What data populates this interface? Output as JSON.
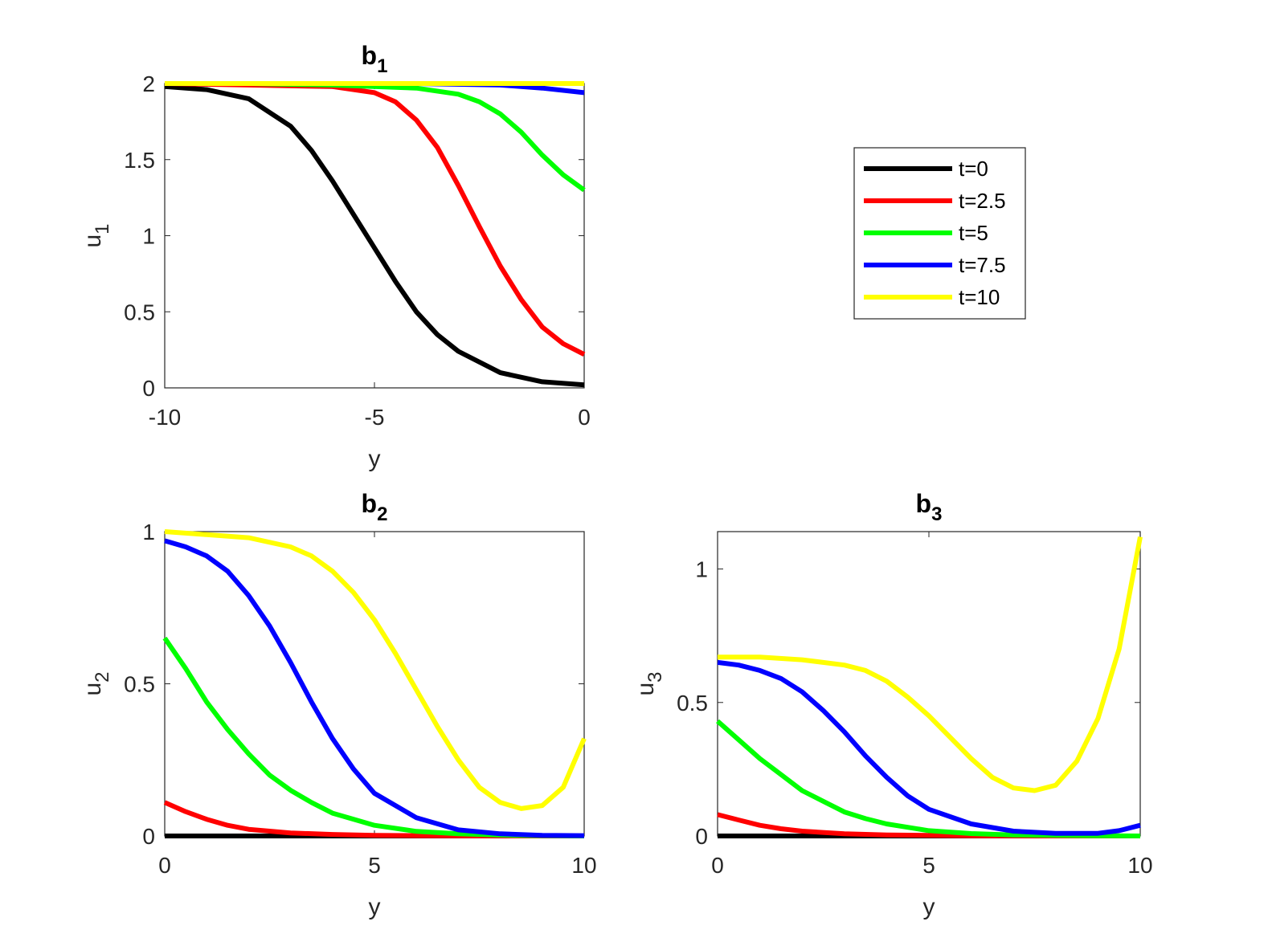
{
  "colors": {
    "t0": "#000000",
    "t2_5": "#ff0000",
    "t5": "#00ff00",
    "t7_5": "#0000ff",
    "t10": "#ffff00"
  },
  "legend": {
    "placement": "right of top-left panel",
    "entries": [
      "t=0",
      "t=2.5",
      "t=5",
      "t=7.5",
      "t=10"
    ]
  },
  "chart_data": [
    {
      "type": "line",
      "title": "b",
      "title_sub": "1",
      "xlabel": "y",
      "ylabel": "u",
      "ylabel_sub": "1",
      "xlim": [
        -10,
        0
      ],
      "ylim": [
        0,
        2
      ],
      "xticks": [
        -10,
        -5,
        0
      ],
      "xtick_labels": [
        "-10",
        "-5",
        "0"
      ],
      "yticks": [
        0,
        0.5,
        1,
        1.5,
        2
      ],
      "ytick_labels": [
        "0",
        "0.5",
        "1",
        "1.5",
        "2"
      ],
      "grid": false,
      "series": [
        {
          "name": "t=0",
          "color": "#000000",
          "x": [
            -10,
            -9,
            -8,
            -7,
            -6.5,
            -6,
            -5.5,
            -5,
            -4.5,
            -4,
            -3.5,
            -3,
            -2,
            -1,
            0
          ],
          "y": [
            1.98,
            1.96,
            1.9,
            1.72,
            1.56,
            1.36,
            1.14,
            0.92,
            0.7,
            0.5,
            0.35,
            0.24,
            0.1,
            0.04,
            0.02
          ]
        },
        {
          "name": "t=2.5",
          "color": "#ff0000",
          "x": [
            -10,
            -8,
            -6,
            -5,
            -4.5,
            -4,
            -3.5,
            -3,
            -2.5,
            -2,
            -1.5,
            -1,
            -0.5,
            0
          ],
          "y": [
            2.0,
            1.99,
            1.98,
            1.94,
            1.88,
            1.76,
            1.58,
            1.33,
            1.06,
            0.8,
            0.58,
            0.4,
            0.29,
            0.22
          ]
        },
        {
          "name": "t=5",
          "color": "#00ff00",
          "x": [
            -10,
            -8,
            -6,
            -4,
            -3,
            -2.5,
            -2,
            -1.5,
            -1,
            -0.5,
            0
          ],
          "y": [
            2.0,
            2.0,
            1.99,
            1.97,
            1.93,
            1.88,
            1.8,
            1.68,
            1.53,
            1.4,
            1.3
          ]
        },
        {
          "name": "t=7.5",
          "color": "#0000ff",
          "x": [
            -10,
            -6,
            -4,
            -2,
            -1,
            0
          ],
          "y": [
            2.0,
            2.0,
            2.0,
            1.99,
            1.97,
            1.94
          ]
        },
        {
          "name": "t=10",
          "color": "#ffff00",
          "x": [
            -10,
            -5,
            0
          ],
          "y": [
            2.0,
            2.0,
            2.0
          ]
        }
      ]
    },
    {
      "type": "line",
      "title": "b",
      "title_sub": "2",
      "xlabel": "y",
      "ylabel": "u",
      "ylabel_sub": "2",
      "xlim": [
        0,
        10
      ],
      "ylim": [
        0,
        1
      ],
      "xticks": [
        0,
        5,
        10
      ],
      "xtick_labels": [
        "0",
        "5",
        "10"
      ],
      "yticks": [
        0,
        0.5,
        1
      ],
      "ytick_labels": [
        "0",
        "0.5",
        "1"
      ],
      "grid": false,
      "series": [
        {
          "name": "t=0",
          "color": "#000000",
          "x": [
            0,
            2,
            4,
            6,
            8,
            10
          ],
          "y": [
            0.0,
            0.0,
            0.0,
            0.0,
            0.0,
            0.0
          ]
        },
        {
          "name": "t=2.5",
          "color": "#ff0000",
          "x": [
            0,
            0.5,
            1,
            1.5,
            2,
            3,
            4,
            5,
            6,
            8,
            10
          ],
          "y": [
            0.11,
            0.08,
            0.055,
            0.035,
            0.022,
            0.01,
            0.005,
            0.002,
            0.001,
            0.0,
            0.0
          ]
        },
        {
          "name": "t=5",
          "color": "#00ff00",
          "x": [
            0,
            0.5,
            1,
            1.5,
            2,
            2.5,
            3,
            3.5,
            4,
            5,
            6,
            7,
            8,
            9,
            10
          ],
          "y": [
            0.65,
            0.55,
            0.44,
            0.35,
            0.27,
            0.2,
            0.15,
            0.11,
            0.075,
            0.035,
            0.015,
            0.007,
            0.003,
            0.001,
            0.0
          ]
        },
        {
          "name": "t=7.5",
          "color": "#0000ff",
          "x": [
            0,
            0.5,
            1,
            1.5,
            2,
            2.5,
            3,
            3.5,
            4,
            4.5,
            5,
            6,
            7,
            8,
            9,
            10
          ],
          "y": [
            0.97,
            0.95,
            0.92,
            0.87,
            0.79,
            0.69,
            0.57,
            0.44,
            0.32,
            0.22,
            0.14,
            0.06,
            0.02,
            0.007,
            0.002,
            0.001
          ]
        },
        {
          "name": "t=10",
          "color": "#ffff00",
          "x": [
            0,
            1,
            2,
            3,
            3.5,
            4,
            4.5,
            5,
            5.5,
            6,
            6.5,
            7,
            7.5,
            8,
            8.5,
            9,
            9.5,
            10
          ],
          "y": [
            1.0,
            0.99,
            0.98,
            0.95,
            0.92,
            0.87,
            0.8,
            0.71,
            0.6,
            0.48,
            0.36,
            0.25,
            0.16,
            0.11,
            0.09,
            0.1,
            0.16,
            0.32
          ]
        }
      ]
    },
    {
      "type": "line",
      "title": "b",
      "title_sub": "3",
      "xlabel": "y",
      "ylabel": "u",
      "ylabel_sub": "3",
      "xlim": [
        0,
        10
      ],
      "ylim": [
        0,
        1.14
      ],
      "xticks": [
        0,
        5,
        10
      ],
      "xtick_labels": [
        "0",
        "5",
        "10"
      ],
      "yticks": [
        0,
        0.5,
        1
      ],
      "ytick_labels": [
        "0",
        "0.5",
        "1"
      ],
      "grid": false,
      "series": [
        {
          "name": "t=0",
          "color": "#000000",
          "x": [
            0,
            2,
            4,
            6,
            8,
            10
          ],
          "y": [
            0.0,
            0.0,
            0.0,
            0.0,
            0.0,
            0.0
          ]
        },
        {
          "name": "t=2.5",
          "color": "#ff0000",
          "x": [
            0,
            0.5,
            1,
            1.5,
            2,
            3,
            4,
            5,
            6,
            8,
            10
          ],
          "y": [
            0.08,
            0.06,
            0.04,
            0.027,
            0.018,
            0.008,
            0.004,
            0.002,
            0.001,
            0.0,
            0.0
          ]
        },
        {
          "name": "t=5",
          "color": "#00ff00",
          "x": [
            0,
            0.5,
            1,
            1.5,
            2,
            2.5,
            3,
            3.5,
            4,
            5,
            6,
            7,
            8,
            9,
            10
          ],
          "y": [
            0.43,
            0.36,
            0.29,
            0.23,
            0.17,
            0.13,
            0.09,
            0.065,
            0.045,
            0.02,
            0.009,
            0.004,
            0.002,
            0.001,
            0.0
          ]
        },
        {
          "name": "t=7.5",
          "color": "#0000ff",
          "x": [
            0,
            0.5,
            1,
            1.5,
            2,
            2.5,
            3,
            3.5,
            4,
            4.5,
            5,
            6,
            7,
            8,
            9,
            9.5,
            10
          ],
          "y": [
            0.65,
            0.64,
            0.62,
            0.59,
            0.54,
            0.47,
            0.39,
            0.3,
            0.22,
            0.15,
            0.1,
            0.045,
            0.018,
            0.01,
            0.01,
            0.02,
            0.04
          ]
        },
        {
          "name": "t=10",
          "color": "#ffff00",
          "x": [
            0,
            1,
            2,
            3,
            3.5,
            4,
            4.5,
            5,
            5.5,
            6,
            6.5,
            7,
            7.5,
            8,
            8.5,
            9,
            9.5,
            10
          ],
          "y": [
            0.67,
            0.67,
            0.66,
            0.64,
            0.62,
            0.58,
            0.52,
            0.45,
            0.37,
            0.29,
            0.22,
            0.18,
            0.17,
            0.19,
            0.28,
            0.44,
            0.7,
            1.12
          ]
        }
      ]
    }
  ]
}
